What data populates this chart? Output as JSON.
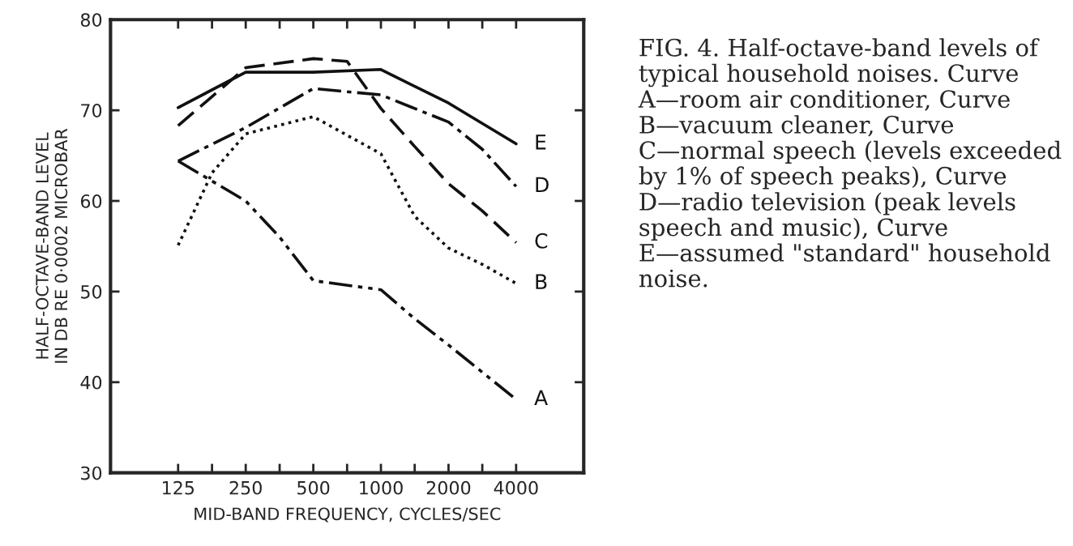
{
  "chart_data": {
    "type": "line",
    "xlabel": "MID-BAND FREQUENCY, CYCLES/SEC",
    "ylabel": "HALF-OCTAVE-BAND LEVEL\nIN DB RE 0·0002 MICROBAR",
    "log": "x",
    "xlim": [
      62.5,
      8000
    ],
    "xticks": [
      125,
      {
        "value": 177,
        "label": null
      },
      250,
      {
        "value": 354,
        "label": null
      },
      500,
      {
        "value": 707,
        "label": null
      },
      1000,
      {
        "value": 1414,
        "label": null
      },
      2000,
      {
        "value": 2828,
        "label": null
      },
      4000
    ],
    "ylim": [
      30,
      80
    ],
    "yticks": [
      30,
      40,
      50,
      60,
      70,
      80
    ],
    "grid": false,
    "legend": false,
    "marker": "none",
    "series": [
      {
        "name": "E",
        "color": "#111111",
        "line_style": "solid",
        "x": [
          125,
          250,
          500,
          1000,
          2000,
          4000
        ],
        "values": [
          70.3,
          74.2,
          74.2,
          74.5,
          70.8,
          66.3
        ]
      },
      {
        "name": "D",
        "color": "#111111",
        "line_style": "dashdot",
        "x": [
          125,
          250,
          500,
          1000,
          2000,
          2828,
          4000
        ],
        "values": [
          64.4,
          68.1,
          72.4,
          71.7,
          68.7,
          65.7,
          61.6
        ]
      },
      {
        "name": "C",
        "color": "#111111",
        "line_style": "dashed",
        "x": [
          125,
          250,
          500,
          707,
          1000,
          1414,
          2000,
          2828,
          4000
        ],
        "values": [
          68.3,
          74.7,
          75.7,
          75.4,
          70.2,
          66,
          61.9,
          58.9,
          55.4
        ]
      },
      {
        "name": "B",
        "color": "#111111",
        "line_style": "dotted",
        "x": [
          125,
          177,
          250,
          500,
          1000,
          1414,
          2000,
          2828,
          4000
        ],
        "values": [
          55.1,
          63.1,
          67.4,
          69.3,
          65.2,
          58.3,
          54.8,
          53,
          50.9
        ]
      },
      {
        "name": "A",
        "color": "#111111",
        "line_style": "dashdotdot",
        "x": [
          125,
          250,
          354,
          500,
          1000,
          1414,
          2000,
          2828,
          4000
        ],
        "values": [
          64.4,
          60,
          56,
          51.2,
          50.2,
          47,
          44.1,
          41.1,
          38.1
        ]
      }
    ],
    "annotations": [
      "FIG. 4. Half-octave-band levels of typical household noises. Curve A—room air conditioner, Curve B—vacuum cleaner, Curve C—normal speech (levels exceeded by 1% of speech peaks), Curve D—radio television (peak levels speech and music), Curve E—assumed \"standard\" household noise."
    ]
  }
}
